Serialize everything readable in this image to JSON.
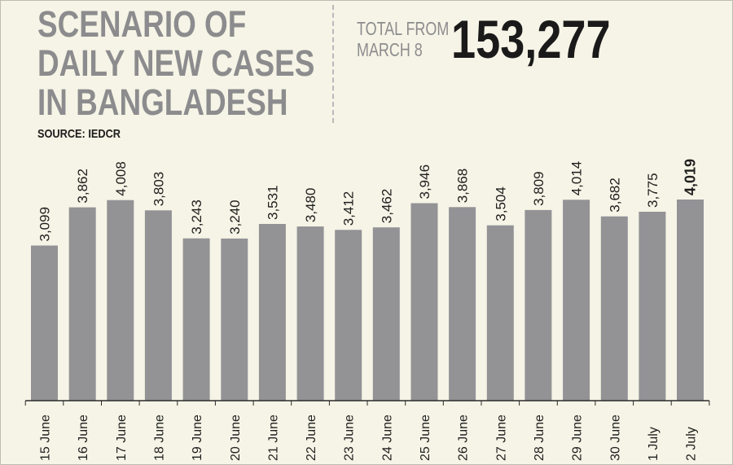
{
  "title_lines": [
    "SCENARIO OF",
    "DAILY NEW CASES",
    "IN BANGLADESH"
  ],
  "source": "SOURCE: IEDCR",
  "total": {
    "label_lines": [
      "TOTAL FROM",
      "MARCH 8"
    ],
    "value": "153,277"
  },
  "colors": {
    "background": "#f6f4e6",
    "bar": "#939396",
    "title": "#8c8c8e",
    "text": "#1e1e1e"
  },
  "chart_data": {
    "type": "bar",
    "categories": [
      "15 June",
      "16 June",
      "17 June",
      "18 June",
      "19 June",
      "20 June",
      "21 June",
      "22 June",
      "23 June",
      "24 June",
      "25 June",
      "26 June",
      "27 June",
      "28 June",
      "29 June",
      "30 June",
      "1 July",
      "2 July"
    ],
    "values": [
      3099,
      3862,
      4008,
      3803,
      3243,
      3240,
      3531,
      3480,
      3412,
      3462,
      3946,
      3868,
      3504,
      3809,
      4014,
      3682,
      3775,
      4019
    ],
    "labels": [
      "3,099",
      "3,862",
      "4,008",
      "3,803",
      "3,243",
      "3,240",
      "3,531",
      "3,480",
      "3,412",
      "3,462",
      "3,946",
      "3,868",
      "3,504",
      "3,809",
      "4,014",
      "3,682",
      "3,775",
      "4,019"
    ],
    "highlight_index": 17,
    "ylim": [
      0,
      4019
    ],
    "grid": false,
    "title": "SCENARIO OF DAILY NEW CASES IN BANGLADESH",
    "xlabel": "",
    "ylabel": ""
  }
}
